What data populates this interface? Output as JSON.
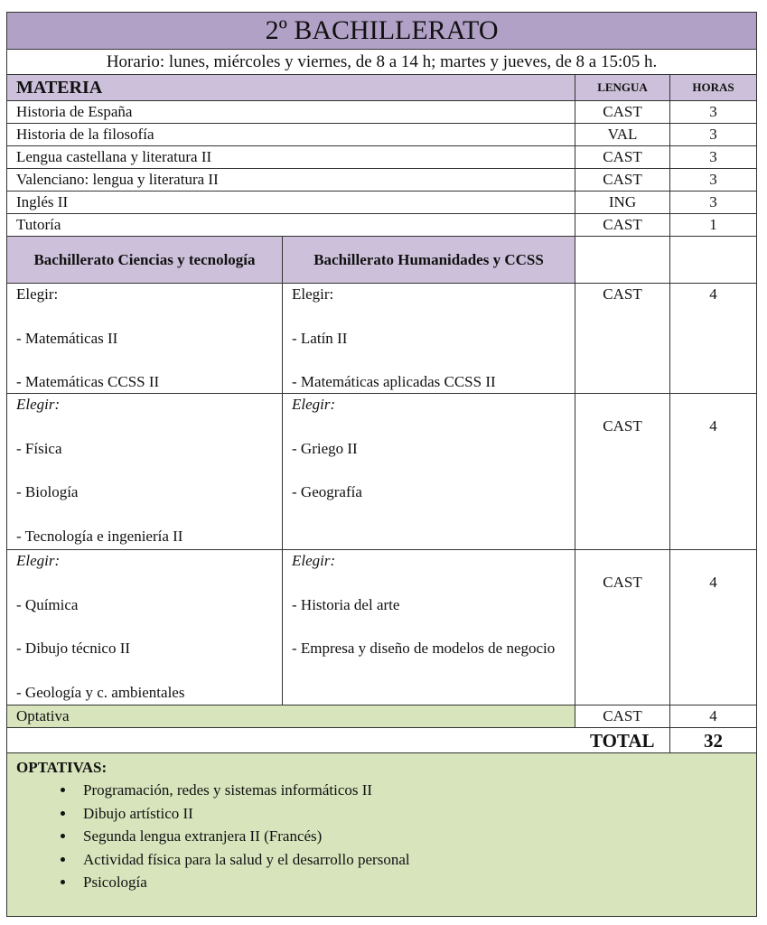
{
  "title": "2º BACHILLERATO",
  "schedule": "Horario: lunes, miércoles y viernes, de 8 a 14 h; martes y jueves, de 8 a 15:05 h.",
  "headers": {
    "materia": "MATERIA",
    "lengua": "LENGUA",
    "horas": "HORAS"
  },
  "common_subjects": [
    {
      "name": "Historia de España",
      "lengua": "CAST",
      "horas": "3"
    },
    {
      "name": "Historia de la filosofía",
      "lengua": "VAL",
      "horas": "3"
    },
    {
      "name": "Lengua castellana y literatura  II",
      "lengua": "CAST",
      "horas": "3"
    },
    {
      "name": "Valenciano: lengua y literatura  II",
      "lengua": "CAST",
      "horas": "3"
    },
    {
      "name": "Inglés II",
      "lengua": "ING",
      "horas": "3"
    },
    {
      "name": "Tutoría",
      "lengua": "CAST",
      "horas": "1"
    }
  ],
  "tracks": {
    "ciencias": "Bachillerato Ciencias y tecnología",
    "humanidades": "Bachillerato Humanidades y CCSS"
  },
  "groups": [
    {
      "choose": "Elegir:",
      "italic": false,
      "ciencias": [
        "- Matemáticas II",
        "- Matemáticas CCSS II"
      ],
      "humanidades": [
        "- Latín II",
        "- Matemáticas aplicadas CCSS II"
      ],
      "lengua": "CAST",
      "horas": "4"
    },
    {
      "choose": "Elegir:",
      "italic": true,
      "ciencias": [
        "- Física",
        "- Biología",
        "- Tecnología e ingeniería II"
      ],
      "humanidades": [
        "- Griego II",
        "- Geografía"
      ],
      "lengua": "CAST",
      "horas": "4"
    },
    {
      "choose": "Elegir:",
      "italic": true,
      "ciencias": [
        "- Química",
        "- Dibujo técnico II",
        "- Geología y c. ambientales"
      ],
      "humanidades": [
        "- Historia del arte",
        "- Empresa y diseño de modelos de negocio"
      ],
      "lengua": "CAST",
      "horas": "4"
    }
  ],
  "optativa_row": {
    "name": "Optativa",
    "lengua": "CAST",
    "horas": "4"
  },
  "total": {
    "label": "TOTAL",
    "value": "32"
  },
  "optativas": {
    "heading": "OPTATIVAS:",
    "items": [
      "Programación,  redes y sistemas informáticos II",
      "Dibujo artístico II",
      "Segunda  lengua extranjera  II (Francés)",
      "Actividad física para  la salud y el desarrollo personal",
      "Psicología"
    ]
  },
  "colors": {
    "title_bg": "#b2a1c7",
    "header_bg": "#ccc0da",
    "optativa_bg": "#d7e4bc",
    "border": "#333333"
  }
}
